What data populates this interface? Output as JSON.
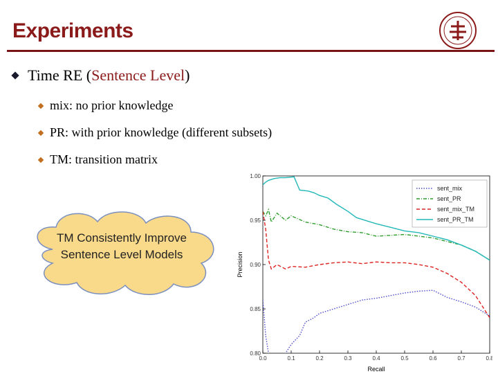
{
  "slide": {
    "title": "Experiments",
    "bullet": {
      "prefix": "Time RE (",
      "highlight": "Sentence Level",
      "suffix": ")"
    },
    "subbullets": [
      "mix: no prior knowledge",
      "PR: with prior knowledge (different subsets)",
      "TM: transition matrix"
    ],
    "callout": "TM Consistently Improve Sentence Level Models",
    "colors": {
      "title": "#8b1a1a",
      "accent": "#8b1a1a",
      "cloud_fill": "#f9d98a",
      "cloud_stroke": "#7a8fbf"
    }
  },
  "chart_data": {
    "type": "line",
    "xlabel": "Recall",
    "ylabel": "Precision",
    "xlim": [
      0.0,
      0.8
    ],
    "ylim": [
      0.8,
      1.0
    ],
    "xticks": [
      "0.0",
      "0.1",
      "0.2",
      "0.3",
      "0.4",
      "0.5",
      "0.6",
      "0.7",
      "0.8"
    ],
    "yticks": [
      "0.80",
      "0.85",
      "0.90",
      "0.95",
      "1.00"
    ],
    "legend_position": "top-right",
    "series": [
      {
        "name": "sent_mix",
        "color": "#4a4acc",
        "dash": "1.5,2",
        "x": [
          0.0,
          0.01,
          0.02,
          0.03,
          0.05,
          0.08,
          0.1,
          0.13,
          0.15,
          0.18,
          0.2,
          0.25,
          0.3,
          0.35,
          0.4,
          0.45,
          0.5,
          0.55,
          0.6,
          0.65,
          0.7,
          0.75,
          0.8
        ],
        "y": [
          0.86,
          0.82,
          0.8,
          0.79,
          0.79,
          0.8,
          0.81,
          0.82,
          0.835,
          0.84,
          0.845,
          0.85,
          0.855,
          0.86,
          0.862,
          0.865,
          0.868,
          0.87,
          0.871,
          0.863,
          0.858,
          0.852,
          0.842
        ]
      },
      {
        "name": "sent_PR",
        "color": "#2e9e2e",
        "dash": "5,2,1,2",
        "x": [
          0.0,
          0.01,
          0.02,
          0.03,
          0.05,
          0.08,
          0.1,
          0.15,
          0.2,
          0.25,
          0.3,
          0.35,
          0.4,
          0.45,
          0.5,
          0.55,
          0.6,
          0.65,
          0.7,
          0.75,
          0.8
        ],
        "y": [
          0.96,
          0.955,
          0.962,
          0.948,
          0.958,
          0.95,
          0.955,
          0.948,
          0.945,
          0.94,
          0.937,
          0.936,
          0.932,
          0.933,
          0.934,
          0.932,
          0.93,
          0.926,
          0.922,
          0.915,
          0.905
        ]
      },
      {
        "name": "sent_mix_TM",
        "color": "#dd2222",
        "dash": "5,3",
        "x": [
          0.0,
          0.01,
          0.02,
          0.03,
          0.05,
          0.08,
          0.1,
          0.15,
          0.2,
          0.25,
          0.3,
          0.35,
          0.4,
          0.45,
          0.5,
          0.55,
          0.6,
          0.65,
          0.7,
          0.75,
          0.8
        ],
        "y": [
          0.96,
          0.94,
          0.905,
          0.895,
          0.9,
          0.895,
          0.898,
          0.897,
          0.9,
          0.902,
          0.903,
          0.901,
          0.903,
          0.902,
          0.902,
          0.9,
          0.897,
          0.89,
          0.88,
          0.865,
          0.84
        ]
      },
      {
        "name": "sent_PR_TM",
        "color": "#22b8b8",
        "dash": "",
        "x": [
          0.0,
          0.01,
          0.02,
          0.04,
          0.06,
          0.08,
          0.11,
          0.13,
          0.16,
          0.18,
          0.2,
          0.23,
          0.26,
          0.3,
          0.33,
          0.37,
          0.4,
          0.45,
          0.5,
          0.55,
          0.6,
          0.65,
          0.7,
          0.75,
          0.8
        ],
        "y": [
          0.99,
          0.993,
          0.995,
          0.997,
          0.998,
          0.998,
          0.999,
          0.984,
          0.983,
          0.981,
          0.978,
          0.975,
          0.968,
          0.96,
          0.953,
          0.949,
          0.946,
          0.942,
          0.938,
          0.936,
          0.932,
          0.928,
          0.922,
          0.915,
          0.905
        ]
      }
    ]
  }
}
